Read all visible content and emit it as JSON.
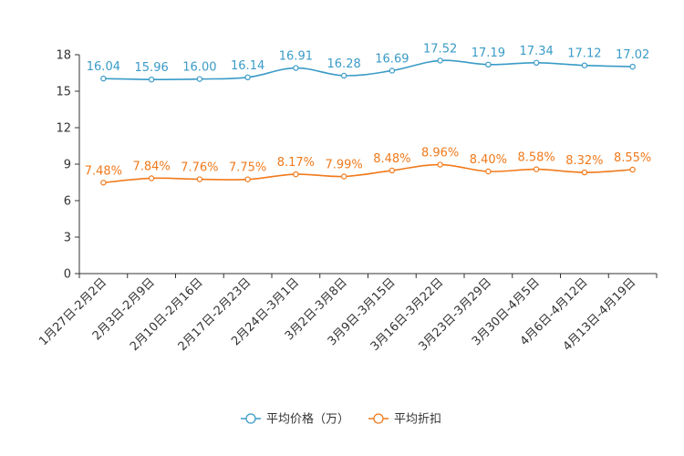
{
  "chart_data": {
    "type": "line",
    "title": "",
    "xlabel": "",
    "ylabel": "",
    "ylim": [
      0,
      18
    ],
    "yticks": [
      0,
      3,
      6,
      9,
      12,
      15,
      18
    ],
    "categories": [
      "1月27日-2月2日",
      "2月3日-2月9日",
      "2月10日-2月16日",
      "2月17日-2月23日",
      "2月24日-3月1日",
      "3月2日-3月8日",
      "3月9日-3月15日",
      "3月16日-3月22日",
      "3月23日-3月29日",
      "3月30日-4月5日",
      "4月6日-4月12日",
      "4月13日-4月19日"
    ],
    "series": [
      {
        "name": "平均价格（万）",
        "color": "#3a9bc7",
        "values": [
          16.04,
          15.96,
          16.0,
          16.14,
          16.91,
          16.28,
          16.69,
          17.52,
          17.19,
          17.34,
          17.12,
          17.02
        ],
        "labels": [
          "16.04",
          "15.96",
          "16.00",
          "16.14",
          "16.91",
          "16.28",
          "16.69",
          "17.52",
          "17.19",
          "17.34",
          "17.12",
          "17.02"
        ]
      },
      {
        "name": "平均折扣",
        "color": "#f07a1c",
        "values": [
          7.48,
          7.84,
          7.76,
          7.75,
          8.17,
          7.99,
          8.48,
          8.96,
          8.4,
          8.58,
          8.32,
          8.55
        ],
        "labels": [
          "7.48%",
          "7.84%",
          "7.76%",
          "7.75%",
          "8.17%",
          "7.99%",
          "8.48%",
          "8.96%",
          "8.40%",
          "8.58%",
          "8.32%",
          "8.55%"
        ]
      }
    ],
    "legend": "bottom-center",
    "grid": false
  }
}
